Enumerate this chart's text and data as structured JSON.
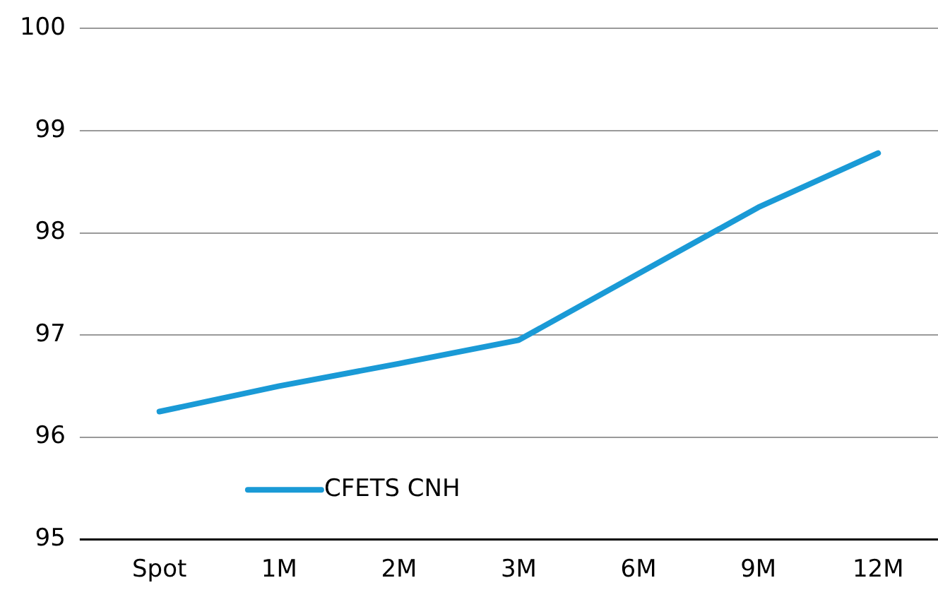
{
  "chart_data": {
    "type": "line",
    "categories": [
      "Spot",
      "1M",
      "2M",
      "3M",
      "6M",
      "9M",
      "12M"
    ],
    "series": [
      {
        "name": "CFETS CNH",
        "color": "#1a9ad6",
        "values": [
          96.25,
          96.5,
          96.72,
          96.95,
          97.6,
          98.25,
          98.78
        ]
      }
    ],
    "ylim": [
      95,
      100
    ],
    "yticks": [
      95,
      96,
      97,
      98,
      99,
      100
    ],
    "grid": "y",
    "legend": "bottom left",
    "marker": "none",
    "line_style": "solid"
  }
}
